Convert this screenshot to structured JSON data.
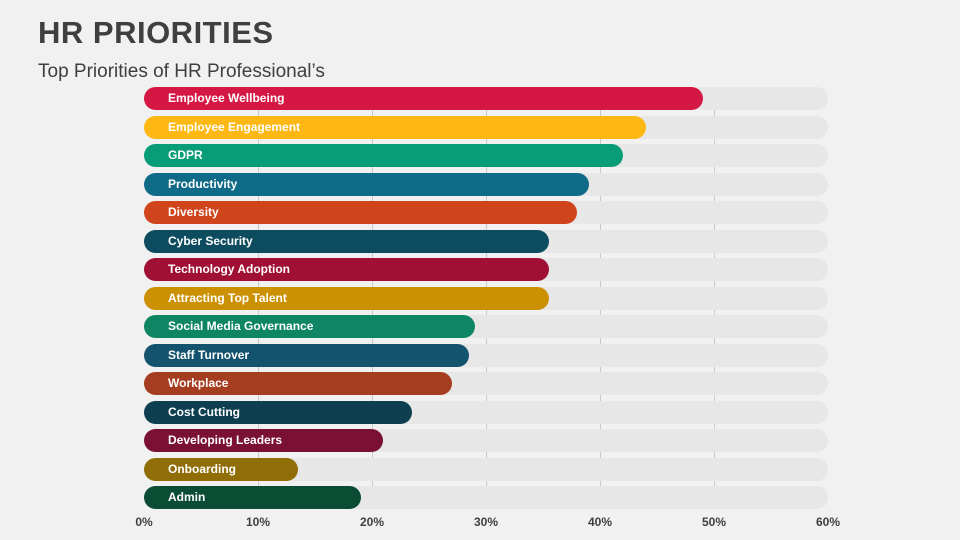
{
  "title": "HR PRIORITIES",
  "subtitle": "Top Priorities of HR Professional’s",
  "colors": {
    "background": "#f1f1f2",
    "track": "#e7e7e7",
    "gridline": "#c9c9c9",
    "title_text": "#3f3f3f",
    "axis_text": "#404040",
    "bar_label_text": "#ffffff"
  },
  "chart_data": {
    "type": "bar",
    "orientation": "horizontal",
    "title": "HR PRIORITIES",
    "subtitle": "Top Priorities of HR Professional’s",
    "categories": [
      "Employee Wellbeing",
      "Employee Engagement",
      "GDPR",
      "Productivity",
      "Diversity",
      "Cyber Security",
      "Technology Adoption",
      "Attracting Top Talent",
      "Social Media Governance",
      "Staff Turnover",
      "Workplace",
      "Cost Cutting",
      "Developing Leaders",
      "Onboarding",
      "Admin"
    ],
    "values": [
      49,
      44,
      42,
      39,
      38,
      35.5,
      35.5,
      35.5,
      29,
      28.5,
      27,
      23.5,
      21,
      13.5,
      19
    ],
    "bar_colors": [
      "#d41743",
      "#fdb813",
      "#089c77",
      "#106b88",
      "#d0441c",
      "#0d4b5f",
      "#a01034",
      "#cb9103",
      "#0f8663",
      "#14536e",
      "#a53e20",
      "#0d3f50",
      "#7a1034",
      "#916d08",
      "#0b4c34"
    ],
    "xlabel": "",
    "ylabel": "",
    "xlim": [
      0,
      60
    ],
    "x_tick_labels": [
      "0%",
      "10%",
      "20%",
      "30%",
      "40%",
      "50%",
      "60%"
    ],
    "grid": "vertical-ticks",
    "legend": "none",
    "bar_label_position": "inside-left"
  }
}
